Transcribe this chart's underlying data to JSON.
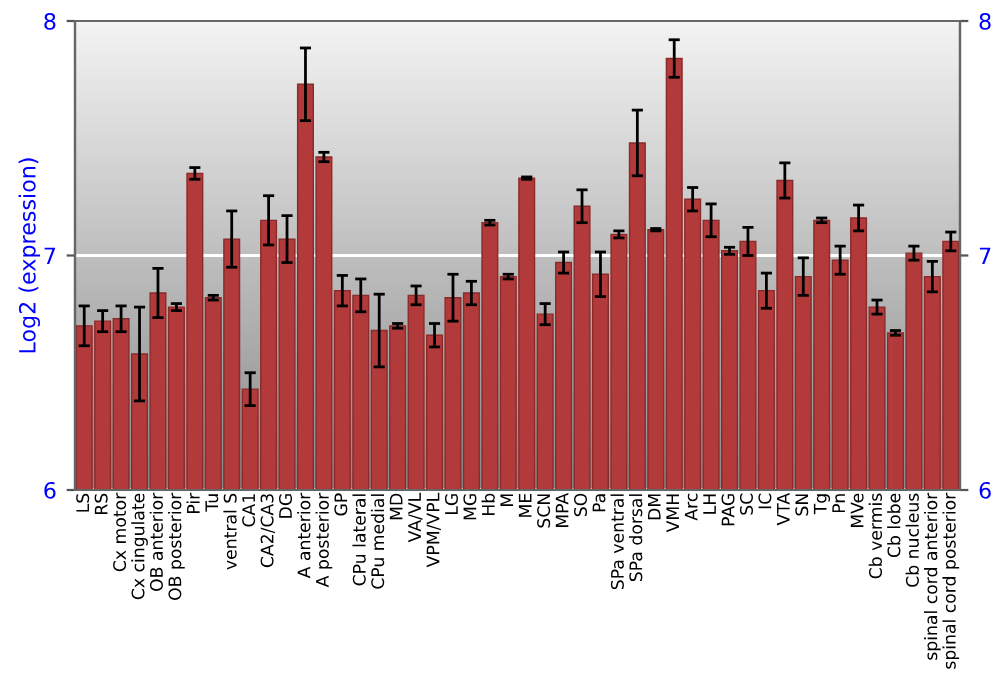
{
  "chart_data": {
    "type": "bar",
    "ylabel": "Log2 (expression)",
    "categories": [
      "LS",
      "RS",
      "Cx motor",
      "Cx cingulate",
      "OB anterior",
      "OB posterior",
      "Pir",
      "Tu",
      "ventral S",
      "CA1",
      "CA2/CA3",
      "DG",
      "A anterior",
      "A posterior",
      "GP",
      "CPu lateral",
      "CPu medial",
      "MD",
      "VA/VL",
      "VPM/VPL",
      "LG",
      "MG",
      "Hb",
      "M",
      "ME",
      "SCN",
      "MPA",
      "SO",
      "Pa",
      "SPa ventral",
      "SPa dorsal",
      "DM",
      "VMH",
      "Arc",
      "LH",
      "PAG",
      "SC",
      "IC",
      "VTA",
      "SN",
      "Tg",
      "Pn",
      "MVe",
      "Cb vermis",
      "Cb lobe",
      "Cb nucleus",
      "spinal cord anterior",
      "spinal cord posterior"
    ],
    "values": [
      6.7,
      6.72,
      6.73,
      6.58,
      6.84,
      6.78,
      7.35,
      6.82,
      7.07,
      6.43,
      7.15,
      7.07,
      7.73,
      7.42,
      6.85,
      6.83,
      6.68,
      6.7,
      6.83,
      6.66,
      6.82,
      6.84,
      7.14,
      6.91,
      7.33,
      6.75,
      6.97,
      7.21,
      6.92,
      7.09,
      7.48,
      7.11,
      7.84,
      7.24,
      7.15,
      7.02,
      7.06,
      6.85,
      7.32,
      6.91,
      7.15,
      6.98,
      7.16,
      6.78,
      6.67,
      7.01,
      6.91,
      7.06
    ],
    "errors": [
      0.085,
      0.045,
      0.055,
      0.2,
      0.105,
      0.015,
      0.025,
      0.01,
      0.12,
      0.07,
      0.105,
      0.1,
      0.155,
      0.02,
      0.065,
      0.07,
      0.155,
      0.01,
      0.04,
      0.05,
      0.1,
      0.05,
      0.01,
      0.01,
      0.005,
      0.045,
      0.045,
      0.07,
      0.095,
      0.015,
      0.14,
      0.005,
      0.08,
      0.05,
      0.07,
      0.015,
      0.06,
      0.075,
      0.075,
      0.08,
      0.01,
      0.06,
      0.055,
      0.03,
      0.01,
      0.03,
      0.065,
      0.04
    ],
    "color": "#b33a3a",
    "ylim": [
      6,
      8
    ],
    "yticks": [
      6,
      7,
      8
    ],
    "y2lim": [
      6,
      8
    ],
    "y2ticks": [
      6,
      7,
      8
    ],
    "grid": "y",
    "legend": false
  }
}
